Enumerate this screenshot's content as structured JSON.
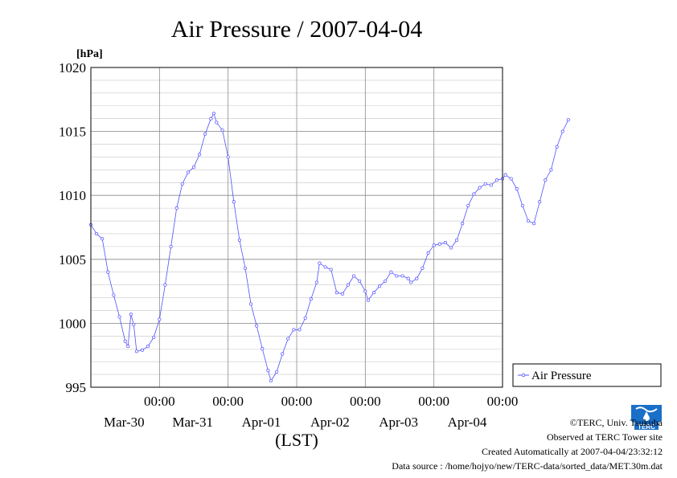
{
  "chart_data": {
    "type": "line",
    "title": "Air Pressure / 2007-04-04",
    "ylabel": "[hPa]",
    "xlabel": "(LST)",
    "ylim": [
      995,
      1020
    ],
    "xlim_days": [
      0,
      6
    ],
    "yticks": [
      995,
      1000,
      1005,
      1010,
      1015,
      1020
    ],
    "grid": true,
    "legend_position": "right",
    "xticks": [
      {
        "time": "00:00",
        "date": "Mar-30"
      },
      {
        "time": "00:00",
        "date": "Mar-31"
      },
      {
        "time": "00:00",
        "date": "Apr-01"
      },
      {
        "time": "00:00",
        "date": "Apr-02"
      },
      {
        "time": "00:00",
        "date": "Apr-03"
      },
      {
        "time": "00:00",
        "date": "Apr-04"
      }
    ],
    "series": [
      {
        "name": "Air Pressure",
        "color": "#5050ff",
        "points": [
          [
            "Mar-29 00:00",
            1007.7
          ],
          [
            "Mar-29 02:00",
            1007.0
          ],
          [
            "Mar-29 04:00",
            1006.6
          ],
          [
            "Mar-29 06:00",
            1004.0
          ],
          [
            "Mar-29 08:00",
            1002.2
          ],
          [
            "Mar-29 10:00",
            1000.5
          ],
          [
            "Mar-29 12:00",
            998.6
          ],
          [
            "Mar-29 13:00",
            998.2
          ],
          [
            "Mar-29 14:00",
            1000.7
          ],
          [
            "Mar-29 15:00",
            999.9
          ],
          [
            "Mar-29 16:00",
            997.8
          ],
          [
            "Mar-29 18:00",
            997.9
          ],
          [
            "Mar-29 20:00",
            998.2
          ],
          [
            "Mar-29 22:00",
            998.9
          ],
          [
            "Mar-30 00:00",
            1000.3
          ],
          [
            "Mar-30 02:00",
            1003.0
          ],
          [
            "Mar-30 04:00",
            1006.0
          ],
          [
            "Mar-30 06:00",
            1009.0
          ],
          [
            "Mar-30 08:00",
            1010.9
          ],
          [
            "Mar-30 10:00",
            1011.8
          ],
          [
            "Mar-30 12:00",
            1012.2
          ],
          [
            "Mar-30 14:00",
            1013.2
          ],
          [
            "Mar-30 16:00",
            1014.8
          ],
          [
            "Mar-30 18:00",
            1016.0
          ],
          [
            "Mar-30 19:00",
            1016.4
          ],
          [
            "Mar-30 20:00",
            1015.7
          ],
          [
            "Mar-30 22:00",
            1015.1
          ],
          [
            "Mar-31 00:00",
            1013.0
          ],
          [
            "Mar-31 02:00",
            1009.5
          ],
          [
            "Mar-31 04:00",
            1006.5
          ],
          [
            "Mar-31 06:00",
            1004.3
          ],
          [
            "Mar-31 08:00",
            1001.5
          ],
          [
            "Mar-31 10:00",
            999.8
          ],
          [
            "Mar-31 12:00",
            998.0
          ],
          [
            "Mar-31 14:00",
            996.3
          ],
          [
            "Mar-31 15:00",
            995.5
          ],
          [
            "Mar-31 17:00",
            996.2
          ],
          [
            "Mar-31 19:00",
            997.6
          ],
          [
            "Mar-31 21:00",
            998.8
          ],
          [
            "Mar-31 23:00",
            999.5
          ],
          [
            "Apr-01 01:00",
            999.5
          ],
          [
            "Apr-01 03:00",
            1000.4
          ],
          [
            "Apr-01 05:00",
            1001.9
          ],
          [
            "Apr-01 07:00",
            1003.2
          ],
          [
            "Apr-01 08:00",
            1004.7
          ],
          [
            "Apr-01 10:00",
            1004.4
          ],
          [
            "Apr-01 12:00",
            1004.2
          ],
          [
            "Apr-01 14:00",
            1002.4
          ],
          [
            "Apr-01 16:00",
            1002.3
          ],
          [
            "Apr-01 18:00",
            1003.0
          ],
          [
            "Apr-01 20:00",
            1003.7
          ],
          [
            "Apr-01 22:00",
            1003.3
          ],
          [
            "Apr-02 00:00",
            1002.5
          ],
          [
            "Apr-02 01:00",
            1001.8
          ],
          [
            "Apr-02 03:00",
            1002.4
          ],
          [
            "Apr-02 05:00",
            1002.9
          ],
          [
            "Apr-02 07:00",
            1003.3
          ],
          [
            "Apr-02 09:00",
            1004.0
          ],
          [
            "Apr-02 11:00",
            1003.7
          ],
          [
            "Apr-02 13:00",
            1003.7
          ],
          [
            "Apr-02 15:00",
            1003.5
          ],
          [
            "Apr-02 16:00",
            1003.2
          ],
          [
            "Apr-02 18:00",
            1003.5
          ],
          [
            "Apr-02 20:00",
            1004.3
          ],
          [
            "Apr-02 22:00",
            1005.5
          ],
          [
            "Apr-03 00:00",
            1006.1
          ],
          [
            "Apr-03 02:00",
            1006.2
          ],
          [
            "Apr-03 04:00",
            1006.3
          ],
          [
            "Apr-03 06:00",
            1005.9
          ],
          [
            "Apr-03 08:00",
            1006.5
          ],
          [
            "Apr-03 10:00",
            1007.8
          ],
          [
            "Apr-03 12:00",
            1009.2
          ],
          [
            "Apr-03 14:00",
            1010.1
          ],
          [
            "Apr-03 16:00",
            1010.6
          ],
          [
            "Apr-03 18:00",
            1010.9
          ],
          [
            "Apr-03 20:00",
            1010.8
          ],
          [
            "Apr-03 22:00",
            1011.2
          ],
          [
            "Apr-04 00:00",
            1011.3
          ],
          [
            "Apr-04 01:00",
            1011.6
          ],
          [
            "Apr-04 03:00",
            1011.3
          ],
          [
            "Apr-04 05:00",
            1010.5
          ],
          [
            "Apr-04 07:00",
            1009.2
          ],
          [
            "Apr-04 09:00",
            1008.0
          ],
          [
            "Apr-04 11:00",
            1007.8
          ],
          [
            "Apr-04 13:00",
            1009.5
          ],
          [
            "Apr-04 15:00",
            1011.2
          ],
          [
            "Apr-04 17:00",
            1012.0
          ],
          [
            "Apr-04 19:00",
            1013.8
          ],
          [
            "Apr-04 21:00",
            1015.0
          ],
          [
            "Apr-04 23:00",
            1015.9
          ]
        ]
      }
    ]
  },
  "legend": {
    "label": "Air Pressure"
  },
  "footer": {
    "copyright": "©TERC, Univ. Tsukuba",
    "observed": "Observed at TERC Tower site",
    "created": "Created Automatically at 2007-04-04/23:32:12",
    "source": "Data source : /home/hojyo/new/TERC-data/sorted_data/MET.30m.dat"
  },
  "logo": {
    "text": "TERC",
    "color": "#1a6fc8"
  }
}
